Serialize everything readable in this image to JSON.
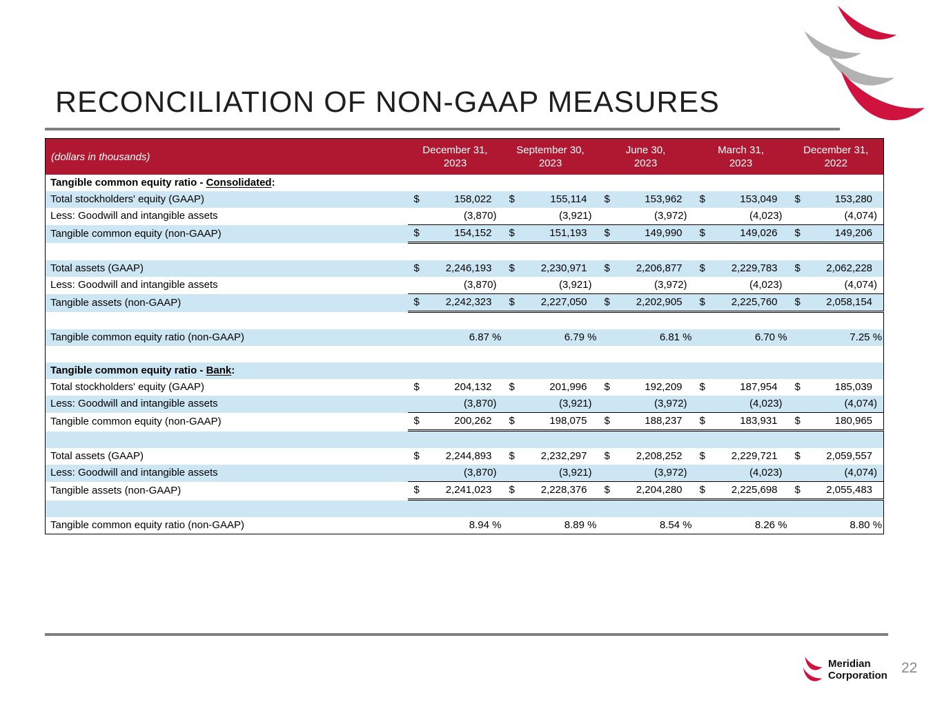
{
  "slide": {
    "title": "RECONCILIATION OF NON-GAAP MEASURES",
    "page_number": "22"
  },
  "footer": {
    "company_line1": "Meridian",
    "company_line2": "Corporation"
  },
  "colors": {
    "header_bg": "#b01730",
    "stripe_bg": "#cde6f4",
    "logo_red": "#d0123e",
    "logo_gray": "#b2b2b2",
    "rule_gray": "#7f7f7f"
  },
  "table": {
    "corner_label": "(dollars in thousands)",
    "dollar_sign": "$",
    "columns": [
      {
        "line1": "December 31,",
        "line2": "2023"
      },
      {
        "line1": "September 30,",
        "line2": "2023"
      },
      {
        "line1": "June 30,",
        "line2": "2023"
      },
      {
        "line1": "March 31,",
        "line2": "2023"
      },
      {
        "line1": "December 31,",
        "line2": "2022"
      }
    ],
    "rows": [
      {
        "type": "section",
        "prefix": "Tangible common equity ratio - ",
        "underline": "Consolidated",
        "suffix": ":"
      },
      {
        "type": "data",
        "label": "Total stockholders' equity (GAAP)",
        "dollar": true,
        "values": [
          "158,022",
          "155,114",
          "153,962",
          "153,049",
          "153,280"
        ]
      },
      {
        "type": "data",
        "label": "Less: Goodwill and intangible assets",
        "dollar": false,
        "values": [
          "(3,870)",
          "(3,921)",
          "(3,972)",
          "(4,023)",
          "(4,074)"
        ]
      },
      {
        "type": "total",
        "label": "Tangible common equity (non-GAAP)",
        "dollar": true,
        "values": [
          "154,152",
          "151,193",
          "149,990",
          "149,026",
          "149,206"
        ]
      },
      {
        "type": "blank"
      },
      {
        "type": "data",
        "label": "Total assets (GAAP)",
        "dollar": true,
        "values": [
          "2,246,193",
          "2,230,971",
          "2,206,877",
          "2,229,783",
          "2,062,228"
        ]
      },
      {
        "type": "data",
        "label": "Less: Goodwill and intangible assets",
        "dollar": false,
        "values": [
          "(3,870)",
          "(3,921)",
          "(3,972)",
          "(4,023)",
          "(4,074)"
        ]
      },
      {
        "type": "total",
        "label": "Tangible assets (non-GAAP)",
        "dollar": true,
        "values": [
          "2,242,323",
          "2,227,050",
          "2,202,905",
          "2,225,760",
          "2,058,154"
        ]
      },
      {
        "type": "blank"
      },
      {
        "type": "percent",
        "label": "Tangible common equity ratio (non-GAAP)",
        "values": [
          "6.87 %",
          "6.79 %",
          "6.81 %",
          "6.70 %",
          "7.25 %"
        ]
      },
      {
        "type": "blank"
      },
      {
        "type": "section",
        "prefix": "Tangible common equity ratio - ",
        "underline": "Bank",
        "suffix": ":"
      },
      {
        "type": "data",
        "label": "Total stockholders' equity (GAAP)",
        "dollar": true,
        "values": [
          "204,132",
          "201,996",
          "192,209",
          "187,954",
          "185,039"
        ]
      },
      {
        "type": "data",
        "label": "Less: Goodwill and intangible assets",
        "dollar": false,
        "values": [
          "(3,870)",
          "(3,921)",
          "(3,972)",
          "(4,023)",
          "(4,074)"
        ]
      },
      {
        "type": "total",
        "label": "Tangible common equity (non-GAAP)",
        "dollar": true,
        "values": [
          "200,262",
          "198,075",
          "188,237",
          "183,931",
          "180,965"
        ]
      },
      {
        "type": "blank"
      },
      {
        "type": "data",
        "label": "Total assets (GAAP)",
        "dollar": true,
        "values": [
          "2,244,893",
          "2,232,297",
          "2,208,252",
          "2,229,721",
          "2,059,557"
        ]
      },
      {
        "type": "data",
        "label": "Less: Goodwill and intangible assets",
        "dollar": false,
        "values": [
          "(3,870)",
          "(3,921)",
          "(3,972)",
          "(4,023)",
          "(4,074)"
        ]
      },
      {
        "type": "total",
        "label": "Tangible assets (non-GAAP)",
        "dollar": true,
        "values": [
          "2,241,023",
          "2,228,376",
          "2,204,280",
          "2,225,698",
          "2,055,483"
        ]
      },
      {
        "type": "blank"
      },
      {
        "type": "percent",
        "label": "Tangible common equity ratio (non-GAAP)",
        "values": [
          "8.94 %",
          "8.89 %",
          "8.54 %",
          "8.26 %",
          "8.80 %"
        ]
      }
    ]
  }
}
